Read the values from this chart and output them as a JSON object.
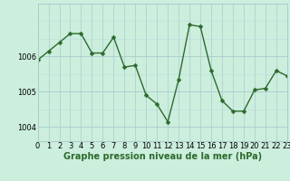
{
  "hours": [
    0,
    1,
    2,
    3,
    4,
    5,
    6,
    7,
    8,
    9,
    10,
    11,
    12,
    13,
    14,
    15,
    16,
    17,
    18,
    19,
    20,
    21,
    22,
    23
  ],
  "pressure": [
    1005.9,
    1006.15,
    1006.4,
    1006.65,
    1006.65,
    1006.1,
    1006.1,
    1006.55,
    1005.7,
    1005.75,
    1004.9,
    1004.65,
    1004.15,
    1005.35,
    1006.9,
    1006.85,
    1005.6,
    1004.75,
    1004.45,
    1004.45,
    1005.05,
    1005.1,
    1005.6,
    1005.45
  ],
  "line_color": "#2d6a2d",
  "marker_color": "#2d6a2d",
  "bg_color": "#cceedd",
  "grid_color_major": "#aacccc",
  "grid_color_minor": "#bbdddd",
  "xlabel": "Graphe pression niveau de la mer (hPa)",
  "xlabel_fontsize": 7,
  "ylabel_ticks": [
    1004,
    1005,
    1006
  ],
  "ylim": [
    1003.6,
    1007.5
  ],
  "xlim": [
    0,
    23
  ],
  "tick_fontsize": 6,
  "marker_size": 2.5,
  "line_width": 1.0
}
